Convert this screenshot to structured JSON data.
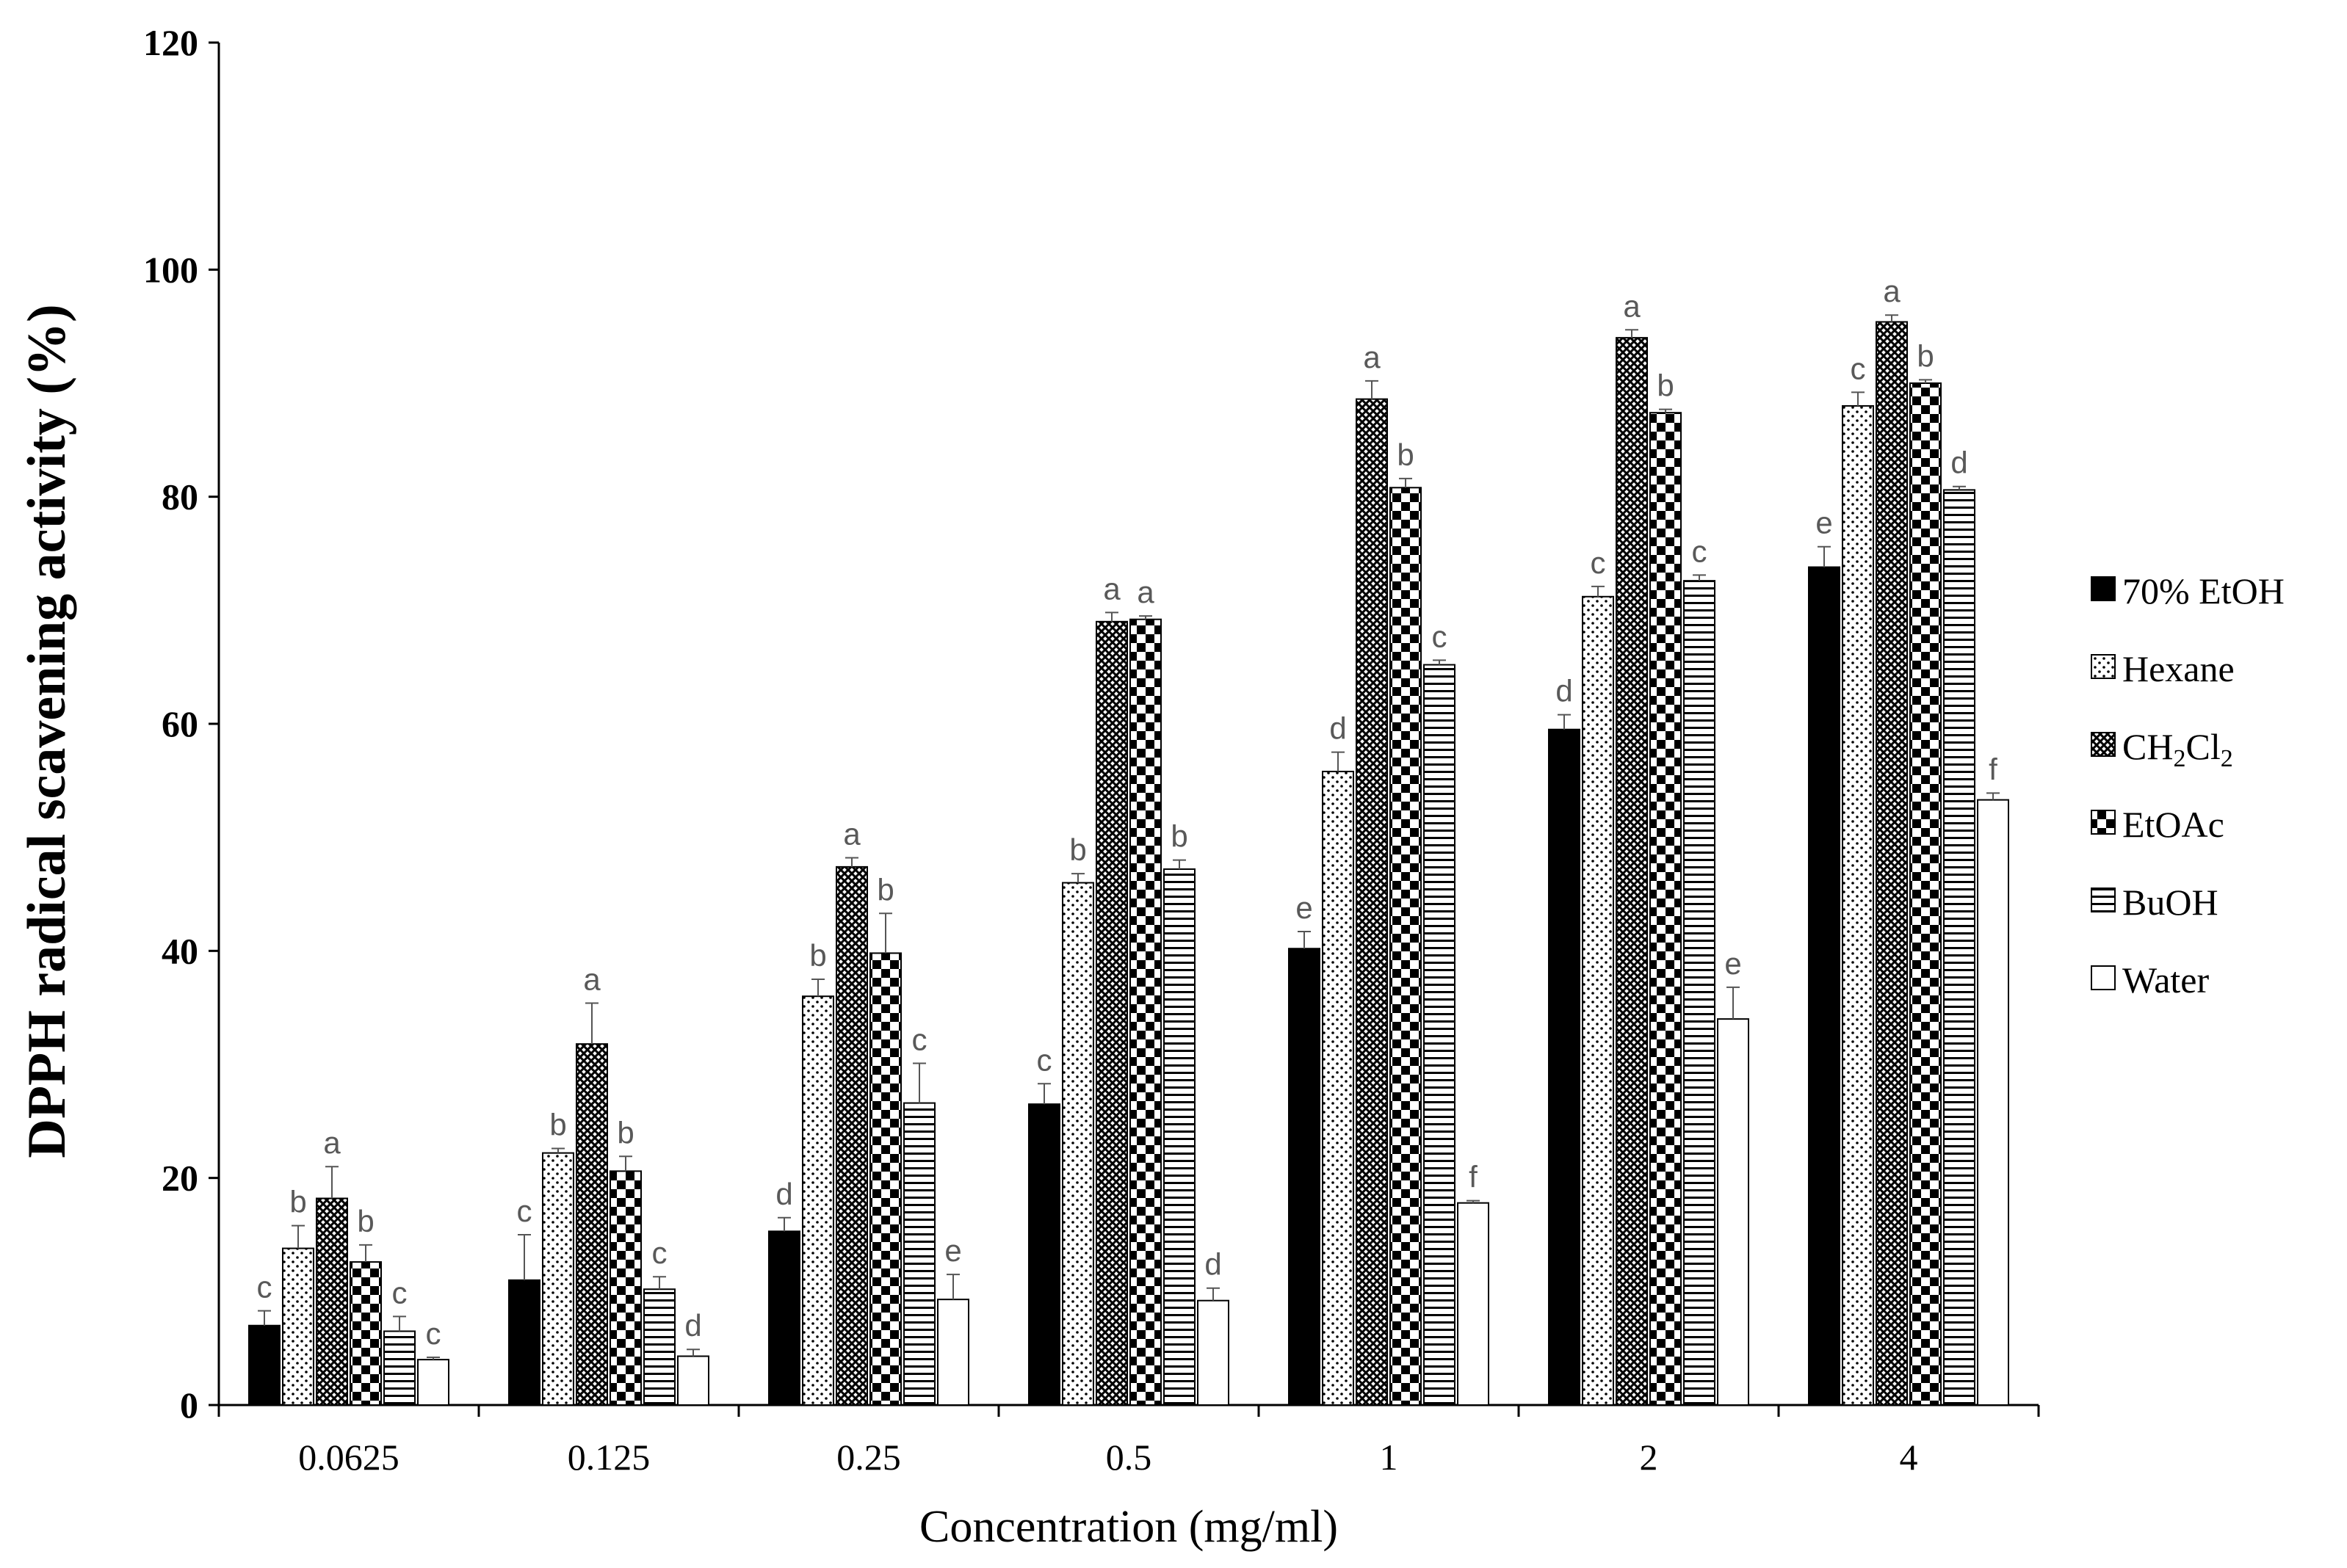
{
  "chart_data": {
    "type": "bar",
    "title": "",
    "xlabel": "Concentration (mg/ml)",
    "ylabel": "DPPH radical scavening activity (%)",
    "ylim": [
      0,
      120
    ],
    "yticks": [
      0,
      20,
      40,
      60,
      80,
      100,
      120
    ],
    "categories": [
      "0.0625",
      "0.125",
      "0.25",
      "0.5",
      "1",
      "2",
      "4"
    ],
    "legend_position": "right",
    "grid": false,
    "series": [
      {
        "name": "70% EtOH",
        "legend_parts": [
          {
            "t": "70% EtOH",
            "sub": false
          }
        ],
        "pattern": "solid",
        "values": [
          7,
          11,
          15.3,
          26.5,
          40.2,
          59.5,
          73.8
        ],
        "errors": [
          1.3,
          4,
          1.2,
          1.8,
          1.5,
          1.3,
          1.8
        ],
        "letters": [
          "c",
          "c",
          "d",
          "c",
          "e",
          "d",
          "e"
        ]
      },
      {
        "name": "Hexane",
        "legend_parts": [
          {
            "t": "Hexane",
            "sub": false
          }
        ],
        "pattern": "dots",
        "values": [
          13.8,
          22.2,
          36,
          46,
          55.8,
          71.2,
          88
        ],
        "errors": [
          2,
          0.4,
          1.5,
          0.8,
          1.7,
          0.9,
          1.2
        ],
        "letters": [
          "b",
          "b",
          "b",
          "b",
          "d",
          "c",
          "c"
        ]
      },
      {
        "name": "CH2Cl2",
        "legend_parts": [
          {
            "t": "CH",
            "sub": false
          },
          {
            "t": "2",
            "sub": true
          },
          {
            "t": "Cl",
            "sub": false
          },
          {
            "t": "2",
            "sub": true
          }
        ],
        "pattern": "crosshatch",
        "values": [
          18.2,
          31.8,
          47.4,
          69,
          88.6,
          94,
          95.4
        ],
        "errors": [
          2.8,
          3.6,
          0.8,
          0.8,
          1.6,
          0.7,
          0.6
        ],
        "letters": [
          "a",
          "a",
          "a",
          "a",
          "a",
          "a",
          "a"
        ]
      },
      {
        "name": "EtOAc",
        "legend_parts": [
          {
            "t": "EtOAc",
            "sub": false
          }
        ],
        "pattern": "checker",
        "values": [
          12.6,
          20.6,
          39.8,
          69.2,
          80.8,
          87.4,
          90
        ],
        "errors": [
          1.5,
          1.3,
          3.5,
          0.3,
          0.8,
          0.3,
          0.3
        ],
        "letters": [
          "b",
          "b",
          "b",
          "a",
          "b",
          "b",
          "b"
        ]
      },
      {
        "name": "BuOH",
        "legend_parts": [
          {
            "t": "BuOH",
            "sub": false
          }
        ],
        "pattern": "hlines",
        "values": [
          6.5,
          10.2,
          26.6,
          47.2,
          65.2,
          72.6,
          80.6
        ],
        "errors": [
          1.3,
          1.1,
          3.5,
          0.8,
          0.4,
          0.5,
          0.3
        ],
        "letters": [
          "c",
          "c",
          "c",
          "b",
          "c",
          "c",
          "d"
        ]
      },
      {
        "name": "Water",
        "legend_parts": [
          {
            "t": "Water",
            "sub": false
          }
        ],
        "pattern": "white",
        "values": [
          4,
          4.3,
          9.3,
          9.2,
          17.8,
          34,
          53.3
        ],
        "errors": [
          0.2,
          0.6,
          2.2,
          1.1,
          0.2,
          2.8,
          0.6
        ],
        "letters": [
          "c",
          "d",
          "e",
          "d",
          "f",
          "e",
          "f"
        ]
      }
    ]
  }
}
